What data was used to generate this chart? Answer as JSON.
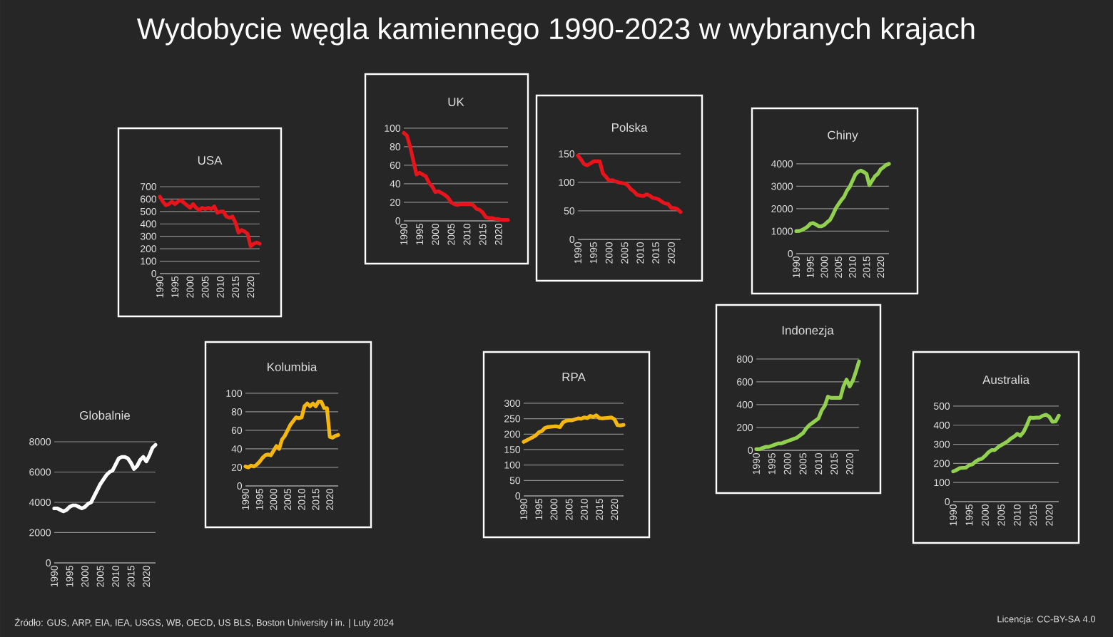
{
  "chart_data": [
    {
      "type": "other",
      "title": "Wydobycie węgla kamiennego 1990-2023 w wybranych krajach",
      "annotations": [
        "Źródło: GUS, ARP, EIA, IEA, USGS, WB, OECD, US BLS, Boston University i in.  |  Luty 2024",
        "Licencja: CC-BY-SA 4.0"
      ]
    },
    {
      "type": "line",
      "title": "USA",
      "x": [
        1990,
        1991,
        1992,
        1993,
        1994,
        1995,
        1996,
        1997,
        1998,
        1999,
        2000,
        2001,
        2002,
        2003,
        2004,
        2005,
        2006,
        2007,
        2008,
        2009,
        2010,
        2011,
        2012,
        2013,
        2014,
        2015,
        2016,
        2017,
        2018,
        2019,
        2020,
        2021,
        2022,
        2023
      ],
      "xlim": [
        1990,
        2023
      ],
      "xticks": [
        1990,
        1995,
        2000,
        2005,
        2010,
        2015,
        2020
      ],
      "ylim": [
        0,
        700
      ],
      "yticks": [
        0,
        100,
        200,
        300,
        400,
        500,
        600,
        700
      ],
      "grid": "y",
      "series": [
        {
          "color": "#e8141c",
          "values": [
            620,
            580,
            550,
            560,
            580,
            560,
            580,
            590,
            570,
            550,
            530,
            560,
            530,
            510,
            530,
            520,
            530,
            520,
            540,
            490,
            500,
            500,
            460,
            450,
            460,
            410,
            330,
            350,
            340,
            320,
            220,
            240,
            250,
            240
          ]
        }
      ]
    },
    {
      "type": "line",
      "title": "UK",
      "x": [
        1990,
        1991,
        1992,
        1993,
        1994,
        1995,
        1996,
        1997,
        1998,
        1999,
        2000,
        2001,
        2002,
        2003,
        2004,
        2005,
        2006,
        2007,
        2008,
        2009,
        2010,
        2011,
        2012,
        2013,
        2014,
        2015,
        2016,
        2017,
        2018,
        2019,
        2020,
        2021,
        2022,
        2023
      ],
      "xlim": [
        1990,
        2023
      ],
      "xticks": [
        1990,
        1995,
        2000,
        2005,
        2010,
        2015,
        2020
      ],
      "ylim": [
        0,
        100
      ],
      "yticks": [
        0,
        20,
        40,
        60,
        80,
        100
      ],
      "grid": "y",
      "series": [
        {
          "color": "#e8141c",
          "values": [
            95,
            92,
            80,
            65,
            50,
            52,
            50,
            48,
            41,
            37,
            31,
            32,
            30,
            28,
            25,
            20,
            18,
            17,
            18,
            18,
            18,
            18,
            17,
            13,
            12,
            9,
            4,
            3,
            3,
            2,
            2,
            1,
            1,
            1
          ]
        }
      ]
    },
    {
      "type": "line",
      "title": "Polska",
      "x": [
        1990,
        1991,
        1992,
        1993,
        1994,
        1995,
        1996,
        1997,
        1998,
        1999,
        2000,
        2001,
        2002,
        2003,
        2004,
        2005,
        2006,
        2007,
        2008,
        2009,
        2010,
        2011,
        2012,
        2013,
        2014,
        2015,
        2016,
        2017,
        2018,
        2019,
        2020,
        2021,
        2022,
        2023
      ],
      "xlim": [
        1990,
        2023
      ],
      "xticks": [
        1990,
        1995,
        2000,
        2005,
        2010,
        2015,
        2020
      ],
      "ylim": [
        0,
        150
      ],
      "yticks": [
        0,
        50,
        100,
        150
      ],
      "grid": "y",
      "series": [
        {
          "color": "#e8141c",
          "values": [
            147,
            140,
            132,
            130,
            133,
            137,
            137,
            137,
            116,
            110,
            103,
            104,
            102,
            100,
            99,
            98,
            95,
            88,
            84,
            78,
            77,
            76,
            79,
            77,
            73,
            72,
            70,
            66,
            63,
            62,
            55,
            55,
            53,
            48
          ]
        }
      ]
    },
    {
      "type": "line",
      "title": "Chiny",
      "x": [
        1990,
        1991,
        1992,
        1993,
        1994,
        1995,
        1996,
        1997,
        1998,
        1999,
        2000,
        2001,
        2002,
        2003,
        2004,
        2005,
        2006,
        2007,
        2008,
        2009,
        2010,
        2011,
        2012,
        2013,
        2014,
        2015,
        2016,
        2017,
        2018,
        2019,
        2020,
        2021,
        2022,
        2023
      ],
      "xlim": [
        1990,
        2023
      ],
      "xticks": [
        1990,
        1995,
        2000,
        2005,
        2010,
        2015,
        2020
      ],
      "ylim": [
        0,
        4000
      ],
      "yticks": [
        0,
        1000,
        2000,
        3000,
        4000
      ],
      "grid": "y",
      "series": [
        {
          "color": "#92d050",
          "values": [
            1000,
            1010,
            1050,
            1120,
            1200,
            1330,
            1360,
            1300,
            1220,
            1220,
            1280,
            1400,
            1500,
            1730,
            2000,
            2200,
            2380,
            2530,
            2800,
            2970,
            3240,
            3520,
            3650,
            3700,
            3640,
            3560,
            3050,
            3250,
            3450,
            3550,
            3750,
            3850,
            3950,
            4000
          ]
        }
      ]
    },
    {
      "type": "line",
      "title": "Kolumbia",
      "x": [
        1990,
        1991,
        1992,
        1993,
        1994,
        1995,
        1996,
        1997,
        1998,
        1999,
        2000,
        2001,
        2002,
        2003,
        2004,
        2005,
        2006,
        2007,
        2008,
        2009,
        2010,
        2011,
        2012,
        2013,
        2014,
        2015,
        2016,
        2017,
        2018,
        2019,
        2020,
        2021,
        2022,
        2023
      ],
      "xlim": [
        1990,
        2023
      ],
      "xticks": [
        1990,
        1995,
        2000,
        2005,
        2010,
        2015,
        2020
      ],
      "ylim": [
        0,
        100
      ],
      "yticks": [
        0,
        20,
        40,
        60,
        80,
        100
      ],
      "grid": "y",
      "series": [
        {
          "color": "#f5b70f",
          "values": [
            21,
            20,
            22,
            21,
            23,
            26,
            30,
            33,
            34,
            33,
            38,
            43,
            40,
            50,
            54,
            60,
            66,
            70,
            74,
            73,
            74,
            86,
            89,
            86,
            89,
            86,
            91,
            91,
            84,
            84,
            53,
            52,
            54,
            55
          ]
        }
      ]
    },
    {
      "type": "line",
      "title": "RPA",
      "x": [
        1990,
        1991,
        1992,
        1993,
        1994,
        1995,
        1996,
        1997,
        1998,
        1999,
        2000,
        2001,
        2002,
        2003,
        2004,
        2005,
        2006,
        2007,
        2008,
        2009,
        2010,
        2011,
        2012,
        2013,
        2014,
        2015,
        2016,
        2017,
        2018,
        2019,
        2020,
        2021,
        2022,
        2023
      ],
      "xlim": [
        1990,
        2023
      ],
      "xticks": [
        1990,
        1995,
        2000,
        2005,
        2010,
        2015,
        2020
      ],
      "ylim": [
        0,
        300
      ],
      "yticks": [
        0,
        50,
        100,
        150,
        200,
        250,
        300
      ],
      "grid": "y",
      "series": [
        {
          "color": "#f5b70f",
          "values": [
            175,
            180,
            185,
            190,
            196,
            206,
            210,
            220,
            223,
            224,
            225,
            225,
            223,
            238,
            243,
            245,
            245,
            248,
            251,
            250,
            254,
            252,
            259,
            256,
            261,
            252,
            251,
            252,
            253,
            254,
            248,
            229,
            228,
            230
          ]
        }
      ]
    },
    {
      "type": "line",
      "title": "Indonezja",
      "x": [
        1990,
        1991,
        1992,
        1993,
        1994,
        1995,
        1996,
        1997,
        1998,
        1999,
        2000,
        2001,
        2002,
        2003,
        2004,
        2005,
        2006,
        2007,
        2008,
        2009,
        2010,
        2011,
        2012,
        2013,
        2014,
        2015,
        2016,
        2017,
        2018,
        2019,
        2020,
        2021,
        2022,
        2023
      ],
      "xlim": [
        1990,
        2023
      ],
      "xticks": [
        1990,
        1995,
        2000,
        2005,
        2010,
        2015,
        2020
      ],
      "ylim": [
        0,
        800
      ],
      "yticks": [
        0,
        200,
        400,
        600,
        800
      ],
      "grid": "y",
      "series": [
        {
          "color": "#92d050",
          "values": [
            10,
            10,
            20,
            30,
            30,
            40,
            50,
            60,
            60,
            70,
            80,
            90,
            100,
            110,
            130,
            150,
            190,
            220,
            240,
            260,
            280,
            350,
            390,
            470,
            460,
            460,
            460,
            460,
            560,
            620,
            560,
            610,
            690,
            780
          ]
        }
      ]
    },
    {
      "type": "line",
      "title": "Australia",
      "x": [
        1990,
        1991,
        1992,
        1993,
        1994,
        1995,
        1996,
        1997,
        1998,
        1999,
        2000,
        2001,
        2002,
        2003,
        2004,
        2005,
        2006,
        2007,
        2008,
        2009,
        2010,
        2011,
        2012,
        2013,
        2014,
        2015,
        2016,
        2017,
        2018,
        2019,
        2020,
        2021,
        2022,
        2023
      ],
      "xlim": [
        1990,
        2023
      ],
      "xticks": [
        1990,
        1995,
        2000,
        2005,
        2010,
        2015,
        2020
      ],
      "ylim": [
        0,
        500
      ],
      "yticks": [
        0,
        100,
        200,
        300,
        400,
        500
      ],
      "grid": "y",
      "series": [
        {
          "color": "#92d050",
          "values": [
            158,
            165,
            175,
            177,
            178,
            191,
            195,
            210,
            220,
            225,
            240,
            258,
            270,
            270,
            285,
            295,
            305,
            315,
            330,
            340,
            355,
            345,
            365,
            400,
            440,
            438,
            440,
            440,
            450,
            455,
            445,
            418,
            420,
            450
          ]
        }
      ]
    },
    {
      "type": "line",
      "title": "Globalnie",
      "x": [
        1990,
        1991,
        1992,
        1993,
        1994,
        1995,
        1996,
        1997,
        1998,
        1999,
        2000,
        2001,
        2002,
        2003,
        2004,
        2005,
        2006,
        2007,
        2008,
        2009,
        2010,
        2011,
        2012,
        2013,
        2014,
        2015,
        2016,
        2017,
        2018,
        2019,
        2020,
        2021,
        2022,
        2023
      ],
      "xlim": [
        1990,
        2023
      ],
      "xticks": [
        1990,
        1995,
        2000,
        2005,
        2010,
        2015,
        2020
      ],
      "ylim": [
        0,
        8000
      ],
      "yticks": [
        0,
        2000,
        4000,
        6000,
        8000
      ],
      "grid": "y",
      "series": [
        {
          "color": "#ffffff",
          "values": [
            3600,
            3600,
            3500,
            3400,
            3500,
            3700,
            3800,
            3800,
            3700,
            3600,
            3700,
            3900,
            4000,
            4400,
            4800,
            5200,
            5500,
            5800,
            6000,
            6100,
            6500,
            6900,
            7000,
            7000,
            6900,
            6600,
            6200,
            6400,
            6800,
            7000,
            6700,
            7100,
            7600,
            7800
          ]
        }
      ]
    }
  ]
}
